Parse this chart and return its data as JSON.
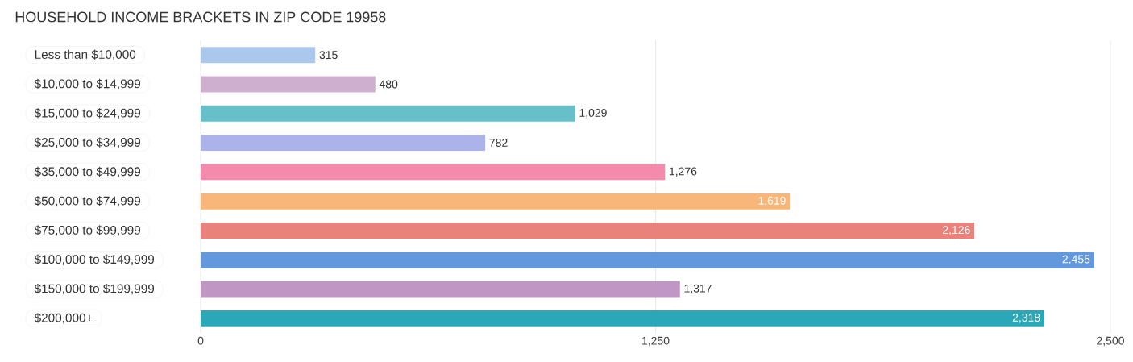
{
  "chart_data": {
    "type": "bar",
    "orientation": "horizontal",
    "title": "HOUSEHOLD INCOME BRACKETS IN ZIP CODE 19958",
    "categories": [
      "Less than $10,000",
      "$10,000 to $14,999",
      "$15,000 to $24,999",
      "$25,000 to $34,999",
      "$35,000 to $49,999",
      "$50,000 to $74,999",
      "$75,000 to $99,999",
      "$100,000 to $149,999",
      "$150,000 to $199,999",
      "$200,000+"
    ],
    "values": [
      315,
      480,
      1029,
      782,
      1276,
      1619,
      2126,
      2455,
      1317,
      2318
    ],
    "value_labels": [
      "315",
      "480",
      "1,029",
      "782",
      "1,276",
      "1,619",
      "2,126",
      "2,455",
      "1,317",
      "2,318"
    ],
    "colors": [
      "#a9c8ec",
      "#cfafd0",
      "#67c0c9",
      "#abb3ea",
      "#f48aac",
      "#f8b779",
      "#e8827a",
      "#6399dc",
      "#c097c4",
      "#2aa8b8"
    ],
    "xlim": [
      0,
      2500
    ],
    "xticks": [
      0,
      {
        "value": 1250,
        "label": "1,250"
      },
      {
        "value": 2500,
        "label": "2,500"
      }
    ],
    "grid": "x"
  }
}
